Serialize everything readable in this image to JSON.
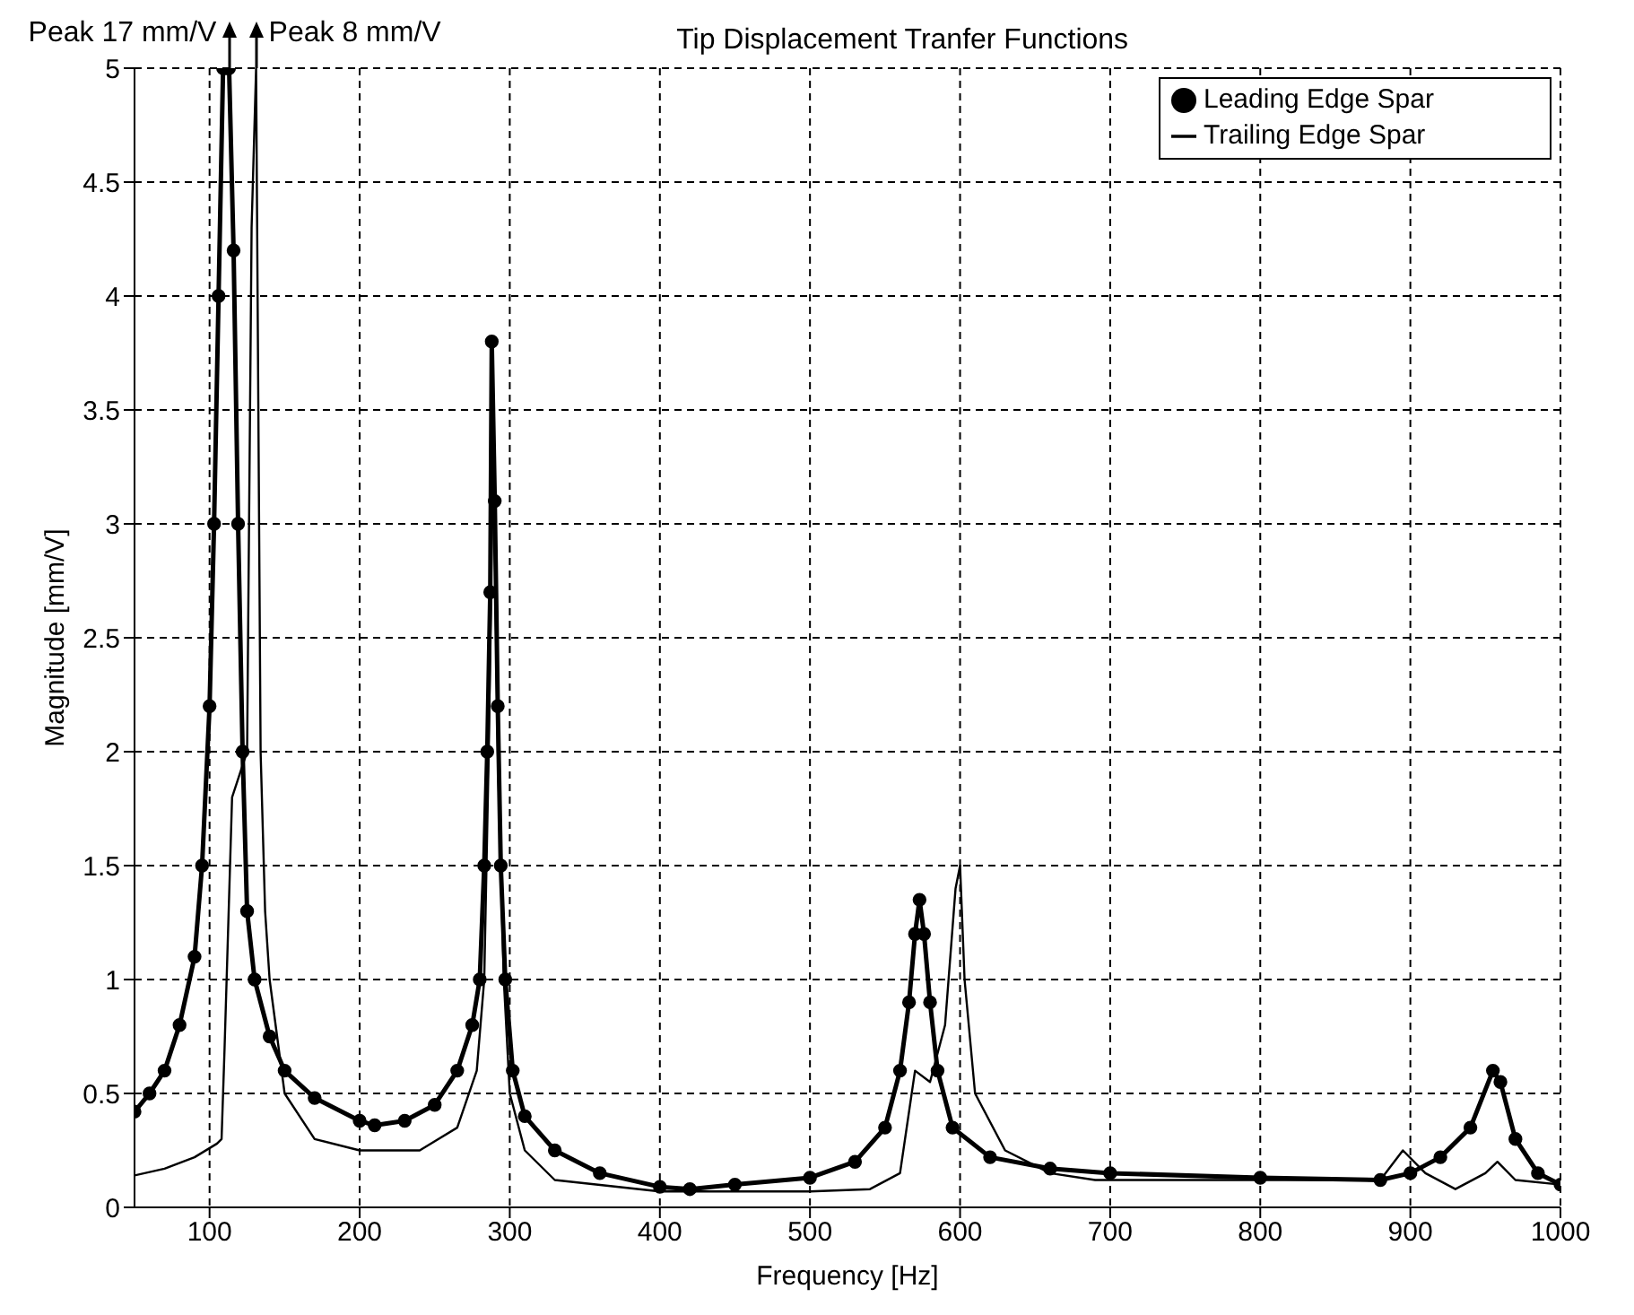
{
  "chart_data": {
    "type": "line",
    "title": "Tip Displacement Tranfer Functions",
    "xlabel": "Frequency [Hz]",
    "ylabel": "Magnitude [mm/V]",
    "annotations": [
      {
        "text": "Peak 17 mm/V",
        "x": 113,
        "y": 5
      },
      {
        "text": "Peak 8 mm/V",
        "x": 131,
        "y": 5
      }
    ],
    "xlim": [
      50,
      1000
    ],
    "xticks": [
      100,
      200,
      300,
      400,
      500,
      600,
      700,
      800,
      900,
      1000
    ],
    "ylim": [
      0,
      5
    ],
    "yticks": [
      0,
      0.5,
      1,
      1.5,
      2,
      2.5,
      3,
      3.5,
      4,
      4.5,
      5
    ],
    "grid": true,
    "legend": "top right",
    "line_style": "solid",
    "series": [
      {
        "name": "Leading Edge Spar",
        "color": "#000000",
        "marker": "circle",
        "x": [
          50,
          60,
          70,
          80,
          90,
          95,
          100,
          103,
          106,
          109,
          111,
          113,
          116,
          119,
          122,
          125,
          130,
          140,
          150,
          170,
          200,
          210,
          230,
          250,
          265,
          275,
          280,
          283,
          285,
          287,
          288,
          290,
          292,
          294,
          297,
          302,
          310,
          330,
          360,
          400,
          420,
          450,
          500,
          530,
          550,
          560,
          566,
          570,
          573,
          576,
          580,
          585,
          595,
          620,
          660,
          700,
          800,
          880,
          900,
          920,
          940,
          955,
          960,
          970,
          985,
          1000
        ],
        "values": [
          0.42,
          0.5,
          0.6,
          0.8,
          1.1,
          1.5,
          2.2,
          3.0,
          4.0,
          5,
          5,
          5,
          4.2,
          3.0,
          2.0,
          1.3,
          1.0,
          0.75,
          0.6,
          0.48,
          0.38,
          0.36,
          0.38,
          0.45,
          0.6,
          0.8,
          1.0,
          1.5,
          2.0,
          2.7,
          3.8,
          3.1,
          2.2,
          1.5,
          1.0,
          0.6,
          0.4,
          0.25,
          0.15,
          0.09,
          0.08,
          0.1,
          0.13,
          0.2,
          0.35,
          0.6,
          0.9,
          1.2,
          1.35,
          1.2,
          0.9,
          0.6,
          0.35,
          0.22,
          0.17,
          0.15,
          0.13,
          0.12,
          0.15,
          0.22,
          0.35,
          0.6,
          0.55,
          0.3,
          0.15,
          0.1
        ]
      },
      {
        "name": "Trailing Edge Spar",
        "color": "#000000",
        "marker": "none",
        "x": [
          50,
          70,
          90,
          105,
          108,
          110,
          115,
          120,
          125,
          128,
          131,
          134,
          137,
          140,
          150,
          170,
          200,
          240,
          265,
          278,
          283,
          286,
          289,
          292,
          296,
          300,
          310,
          330,
          400,
          500,
          540,
          560,
          570,
          580,
          590,
          597,
          600,
          603,
          610,
          630,
          660,
          690,
          800,
          880,
          895,
          910,
          930,
          950,
          958,
          970,
          1000
        ],
        "values": [
          0.14,
          0.17,
          0.22,
          0.28,
          0.3,
          0.7,
          1.8,
          1.9,
          2.0,
          4.3,
          5,
          2.0,
          1.3,
          1.0,
          0.5,
          0.3,
          0.25,
          0.25,
          0.35,
          0.6,
          1.0,
          2.0,
          3.4,
          2.0,
          1.0,
          0.5,
          0.25,
          0.12,
          0.07,
          0.07,
          0.08,
          0.15,
          0.6,
          0.55,
          0.8,
          1.4,
          1.5,
          1.0,
          0.5,
          0.25,
          0.15,
          0.12,
          0.12,
          0.12,
          0.25,
          0.15,
          0.08,
          0.15,
          0.2,
          0.12,
          0.1
        ]
      }
    ]
  }
}
